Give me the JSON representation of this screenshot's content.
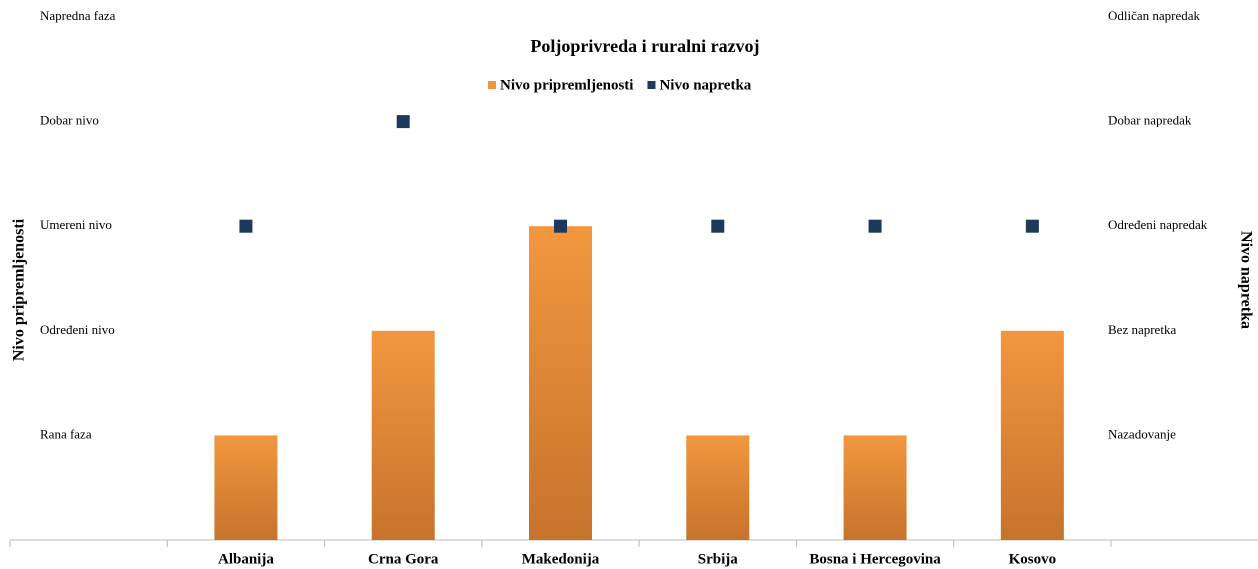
{
  "chart_data": {
    "type": "bar",
    "title": "Poljoprivreda i ruralni razvoj",
    "categories": [
      null,
      "Albanija",
      "Crna Gora",
      "Makedonija",
      "Srbija",
      "Bosna i Hercegovina",
      "Kosovo"
    ],
    "series": [
      {
        "name": "Nivo pripremljenosti",
        "type": "bar",
        "color": "#ef9440",
        "values": [
          null,
          1,
          2,
          3,
          1,
          1,
          2
        ]
      },
      {
        "name": "Nivo napretka",
        "type": "scatter",
        "axis": "y2",
        "color": "#1d3a5c",
        "values": [
          null,
          3,
          4,
          3,
          3,
          3,
          3
        ]
      }
    ],
    "ylabel": "Nivo pripremljenosti",
    "y2label": "Nivo napretka",
    "ylim": [
      0,
      5
    ],
    "yticks": [
      {
        "value": 1,
        "label": "Rana faza"
      },
      {
        "value": 2,
        "label": "Određeni nivo"
      },
      {
        "value": 3,
        "label": "Umereni nivo"
      },
      {
        "value": 4,
        "label": "Dobar nivo"
      },
      {
        "value": 5,
        "label": "Napredna faza"
      }
    ],
    "y2lim": [
      0,
      5
    ],
    "y2ticks": [
      {
        "value": 1,
        "label": "Nazadovanje"
      },
      {
        "value": 2,
        "label": "Bez napretka"
      },
      {
        "value": 3,
        "label": "Određeni napredak"
      },
      {
        "value": 4,
        "label": "Dobar napredak"
      },
      {
        "value": 5,
        "label": "Odličan napredak"
      }
    ],
    "grid": false,
    "legend": "top"
  }
}
